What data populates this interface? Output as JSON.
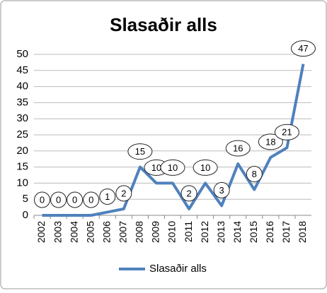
{
  "chart_data": {
    "type": "line",
    "title": "Slasaðir alls",
    "categories": [
      "2002",
      "2003",
      "2004",
      "2005",
      "2006",
      "2007",
      "2008",
      "2009",
      "2010",
      "2011",
      "2012",
      "2013",
      "2014",
      "2015",
      "2016",
      "2017",
      "2018"
    ],
    "series": [
      {
        "name": "Slasaðir alls",
        "color": "#4f81bd",
        "values": [
          0,
          0,
          0,
          0,
          1,
          2,
          15,
          10,
          10,
          2,
          10,
          3,
          16,
          8,
          18,
          21,
          47
        ]
      }
    ],
    "ylim": [
      0,
      50
    ],
    "yticks": [
      0,
      5,
      10,
      15,
      20,
      25,
      30,
      35,
      40,
      45,
      50
    ],
    "grid": true,
    "legend": "bottom"
  }
}
